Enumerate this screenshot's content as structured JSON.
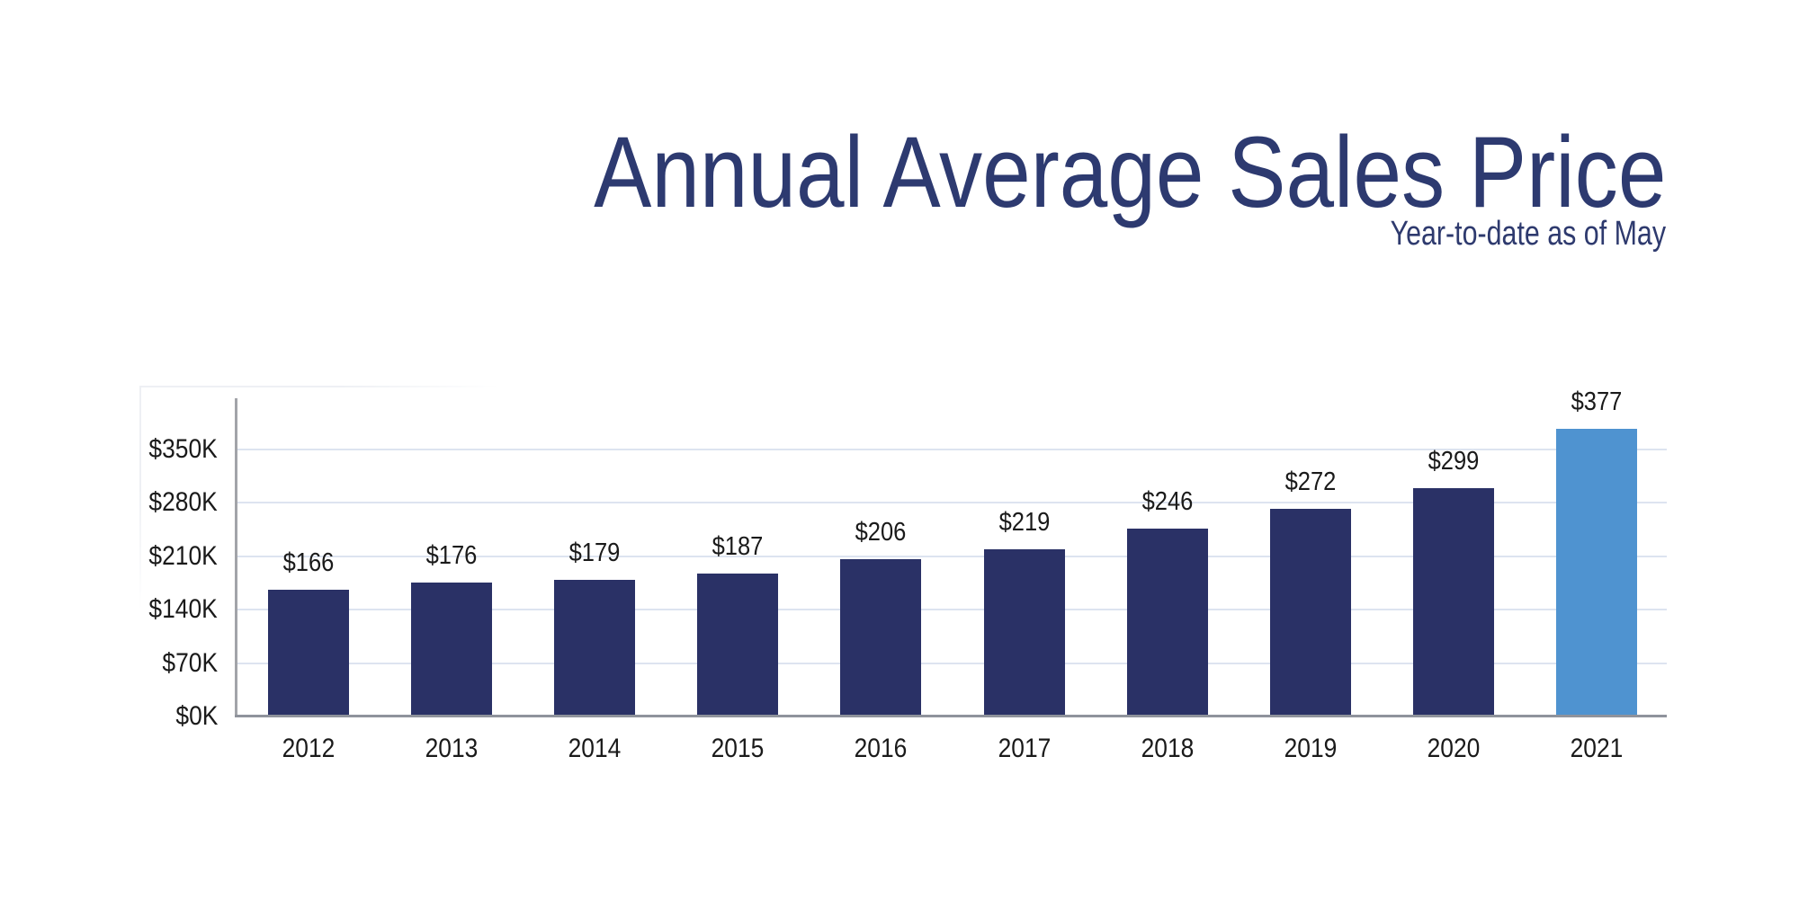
{
  "header": {
    "title": "Annual Average Sales Price",
    "subtitle": "Year-to-date as of May"
  },
  "chart_data": {
    "type": "bar",
    "title": "Annual Average Sales Price",
    "subtitle": "Year-to-date as of May",
    "categories": [
      "2012",
      "2013",
      "2014",
      "2015",
      "2016",
      "2017",
      "2018",
      "2019",
      "2020",
      "2021"
    ],
    "values": [
      166,
      176,
      179,
      187,
      206,
      219,
      246,
      272,
      299,
      377
    ],
    "value_labels": [
      "$166",
      "$176",
      "$179",
      "$187",
      "$206",
      "$219",
      "$246",
      "$272",
      "$299",
      "$377"
    ],
    "y_tick_labels": [
      "$0K",
      "$70K",
      "$140K",
      "$210K",
      "$280K",
      "$350K"
    ],
    "y_tick_values": [
      0,
      70,
      140,
      210,
      280,
      350
    ],
    "ylim": [
      0,
      420
    ],
    "xlabel": "",
    "ylabel": "",
    "grid": "horizontal",
    "legend": "none",
    "highlight_index": 9,
    "colors": {
      "bar": "#2a3166",
      "highlight_bar": "#4f93d0",
      "gridline": "#dde4f0",
      "axis": "#a2a4a9",
      "baseline": "#8f939c",
      "title_text": "#2d3a70",
      "label_text": "#1a1a1a"
    }
  }
}
